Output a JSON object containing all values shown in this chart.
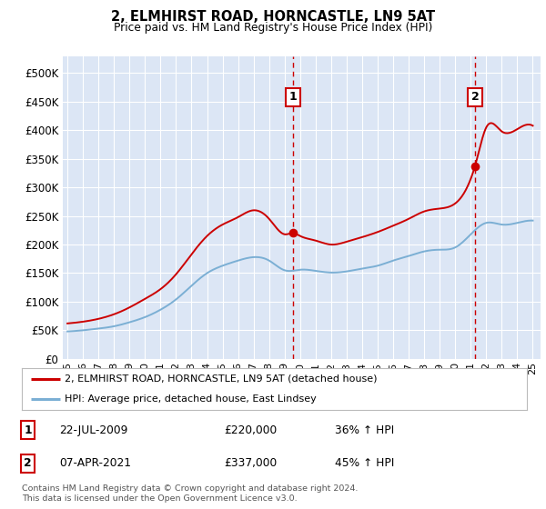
{
  "title": "2, ELMHIRST ROAD, HORNCASTLE, LN9 5AT",
  "subtitle": "Price paid vs. HM Land Registry's House Price Index (HPI)",
  "ylabel_ticks": [
    "£0",
    "£50K",
    "£100K",
    "£150K",
    "£200K",
    "£250K",
    "£300K",
    "£350K",
    "£400K",
    "£450K",
    "£500K"
  ],
  "ytick_values": [
    0,
    50000,
    100000,
    150000,
    200000,
    250000,
    300000,
    350000,
    400000,
    450000,
    500000
  ],
  "ylim": [
    0,
    530000
  ],
  "xlim_start": 1994.7,
  "xlim_end": 2025.5,
  "background_color": "#dce6f5",
  "grid_color": "#ffffff",
  "red_line_color": "#cc0000",
  "blue_line_color": "#7bafd4",
  "marker1_date": 2009.55,
  "marker1_value": 220000,
  "marker2_date": 2021.27,
  "marker2_value": 337000,
  "vline_color": "#cc0000",
  "marker_color": "#cc0000",
  "legend_label_red": "2, ELMHIRST ROAD, HORNCASTLE, LN9 5AT (detached house)",
  "legend_label_blue": "HPI: Average price, detached house, East Lindsey",
  "annotation1_label": "1",
  "annotation1_date": "22-JUL-2009",
  "annotation1_price": "£220,000",
  "annotation1_hpi": "36% ↑ HPI",
  "annotation2_label": "2",
  "annotation2_date": "07-APR-2021",
  "annotation2_price": "£337,000",
  "annotation2_hpi": "45% ↑ HPI",
  "footer": "Contains HM Land Registry data © Crown copyright and database right 2024.\nThis data is licensed under the Open Government Licence v3.0.",
  "xtick_years": [
    1995,
    1996,
    1997,
    1998,
    1999,
    2000,
    2001,
    2002,
    2003,
    2004,
    2005,
    2006,
    2007,
    2008,
    2009,
    2010,
    2011,
    2012,
    2013,
    2014,
    2015,
    2016,
    2017,
    2018,
    2019,
    2020,
    2021,
    2022,
    2023,
    2024,
    2025
  ],
  "hpi_years": [
    1995,
    1996,
    1997,
    1998,
    1999,
    2000,
    2001,
    2002,
    2003,
    2004,
    2005,
    2006,
    2007,
    2008,
    2009,
    2010,
    2011,
    2012,
    2013,
    2014,
    2015,
    2016,
    2017,
    2018,
    2019,
    2020,
    2021,
    2022,
    2023,
    2024,
    2025
  ],
  "hpi_values": [
    48000,
    50000,
    53000,
    57000,
    64000,
    73000,
    86000,
    104000,
    128000,
    150000,
    163000,
    172000,
    178000,
    172000,
    155000,
    156000,
    154000,
    151000,
    153000,
    158000,
    163000,
    172000,
    180000,
    188000,
    191000,
    195000,
    218000,
    238000,
    235000,
    238000,
    242000
  ],
  "prop_years": [
    1995,
    1996,
    1997,
    1998,
    1999,
    2000,
    2001,
    2002,
    2003,
    2004,
    2005,
    2006,
    2007,
    2008,
    2009,
    2009.55,
    2010,
    2011,
    2012,
    2013,
    2014,
    2015,
    2016,
    2017,
    2018,
    2019,
    2020,
    2021,
    2021.27,
    2022,
    2023,
    2024,
    2025
  ],
  "prop_values": [
    62000,
    65000,
    70000,
    78000,
    90000,
    105000,
    122000,
    148000,
    183000,
    215000,
    235000,
    248000,
    260000,
    245000,
    218000,
    220000,
    215000,
    207000,
    200000,
    205000,
    213000,
    222000,
    233000,
    245000,
    258000,
    263000,
    272000,
    315000,
    337000,
    405000,
    398000,
    402000,
    408000
  ]
}
